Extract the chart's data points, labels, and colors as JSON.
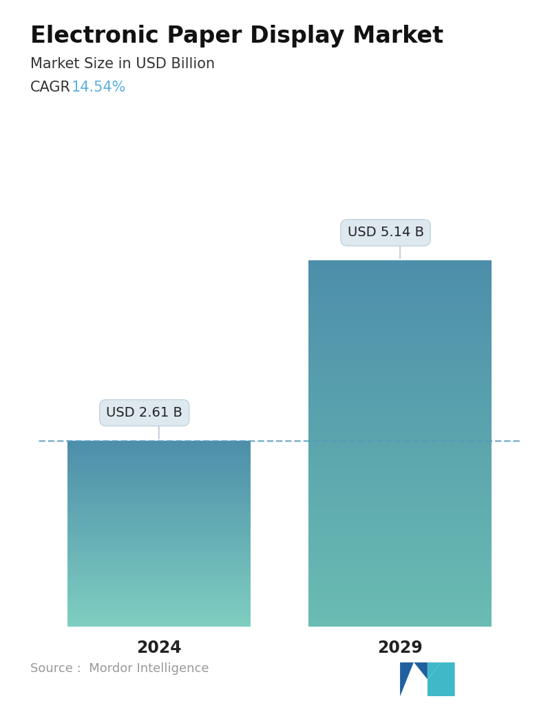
{
  "title": "Electronic Paper Display Market",
  "subtitle": "Market Size in USD Billion",
  "cagr_label": "CAGR  ",
  "cagr_value": "14.54%",
  "cagr_color": "#5aafe0",
  "categories": [
    "2024",
    "2029"
  ],
  "values": [
    2.61,
    5.14
  ],
  "bar_labels": [
    "USD 2.61 B",
    "USD 5.14 B"
  ],
  "bar_top_color_1": "#4d8eaa",
  "bar_bottom_color_1": "#7ecec0",
  "bar_top_color_2": "#4d8eaa",
  "bar_bottom_color_2": "#6abcb2",
  "dashed_line_color": "#5599bb",
  "dashed_line_y": 2.61,
  "source_text": "Source :  Mordor Intelligence",
  "source_color": "#999999",
  "background_color": "#ffffff",
  "title_fontsize": 24,
  "subtitle_fontsize": 15,
  "cagr_fontsize": 15,
  "bar_label_fontsize": 14,
  "tick_fontsize": 17,
  "source_fontsize": 13,
  "ylim": [
    0,
    6.2
  ],
  "bar_width": 0.38,
  "positions": [
    0.25,
    0.75
  ]
}
